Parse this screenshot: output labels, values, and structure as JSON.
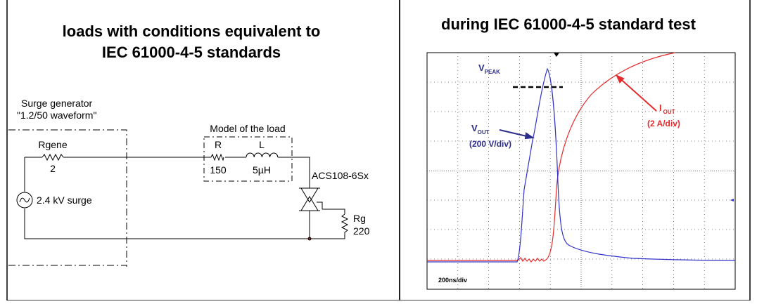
{
  "left_panel": {
    "title": [
      "loads with conditions equivalent to",
      "IEC 61000-4-5 standards"
    ],
    "generator": {
      "name": "Surge generator",
      "waveform": "\"1.2/50 waveform\"",
      "resistor": "Rgene",
      "resistor_value": "2",
      "source": "2.4 kV surge"
    },
    "load": {
      "name": "Model of the load",
      "r": "R",
      "r_value": "150",
      "l": "L",
      "l_value": "5µH"
    },
    "device": "ACS108-6Sx",
    "gate_resistor": {
      "name": "Rg",
      "value": "220"
    }
  },
  "right_panel": {
    "title": "during IEC 61000-4-5 standard test",
    "vpeak": {
      "main": "V",
      "sub": "PEAK"
    },
    "iout": {
      "main": "I",
      "sub": "OUT",
      "scale": "(2 A/div)"
    },
    "vout": {
      "main": "V",
      "sub": "OUT",
      "scale": "(200 V/div)"
    },
    "timebase": "200ns/div"
  }
}
